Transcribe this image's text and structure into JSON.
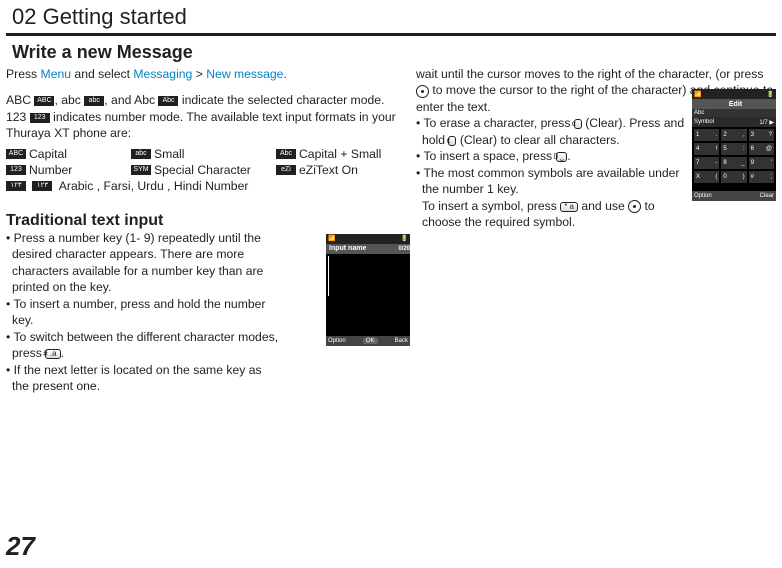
{
  "chapter": "02 Getting started",
  "section_title": "Write a new Message",
  "press_line_1": "Press ",
  "menu_word": "Menu",
  "press_line_2": " and select ",
  "messaging_word": "Messaging",
  "gt": " > ",
  "new_message_word": "New message",
  "period": ".",
  "para_abc_1": "ABC ",
  "para_abc_2": ", abc ",
  "para_abc_3": ", and Abc ",
  "para_abc_4": " indicate the selected character mode. 123 ",
  "para_abc_5": " indicates number mode. The available text input formats in your Thuraya XT phone are:",
  "mode_icons": {
    "capital": "ABC",
    "small": "abc",
    "capital_small": "Abc",
    "number": "123",
    "special": "SYM",
    "ezi": "eZi",
    "arabic1": "۱۲۳",
    "arabic2": "١٢٣"
  },
  "mode_labels": {
    "capital": "Capital",
    "small": "Small",
    "capital_small": "Capital + Small",
    "number": "Number",
    "special": "Special Character",
    "ezi": "eZiText On",
    "arabic": "Arabic , Farsi, Urdu , Hindi Number"
  },
  "sub_heading": "Traditional text input",
  "left_bullets": {
    "b1": "Press a number key (1- 9) repeatedly until the desired character appears. There are more characters available for a number key than are printed on the key.",
    "b2": "To insert a number, press and hold the number key.",
    "b3a": "To switch between the different character modes, press ",
    "b3b": ".",
    "b4": "If the next letter is located on the same key as the present one."
  },
  "key_hash": "# .a",
  "right_para_1_a": "wait until the cursor moves to the right of the character, (or press ",
  "right_para_1_b": " to move the cursor to the right of the character) and continue to enter the text.",
  "right_bullets": {
    "b1a": "To erase a character, press ",
    "b1b": " (Clear). Press and hold ",
    "b1c": " (Clear) to clear all characters.",
    "b2a": "To insert a space, press ",
    "b2b": ".",
    "b3a": "The most common symbols are available under the number 1 key.",
    "b3b_1": "To insert a symbol, press ",
    "b3b_2": " and use ",
    "b3b_3": " to choose the required symbol."
  },
  "key_clear": "c",
  "key_zero": "0 ⎵",
  "key_star": "* a",
  "shots": {
    "left": {
      "top_left": "📶",
      "top_right": "🔋",
      "title": "Input name",
      "title_right": "0/20",
      "bottom_l": "Option",
      "bottom_m": "OK",
      "bottom_r": "Back"
    },
    "right": {
      "top_left": "📶",
      "top_right": "🔋",
      "title": "Edit",
      "sub_l": "Abc",
      "sub2": "Symbol",
      "sub_r": "1/7 ▶",
      "bottom_l": "Option",
      "bottom_r": "Clear",
      "grid": [
        [
          "1",
          ".",
          "2",
          ",",
          "3",
          "?"
        ],
        [
          "4",
          "!",
          "5",
          ":",
          "6",
          "@"
        ],
        [
          "7",
          "-",
          "8",
          "_",
          "9",
          "'"
        ],
        [
          "X",
          "(",
          "0",
          ")",
          "#",
          ";"
        ]
      ]
    }
  },
  "page_number": "27"
}
